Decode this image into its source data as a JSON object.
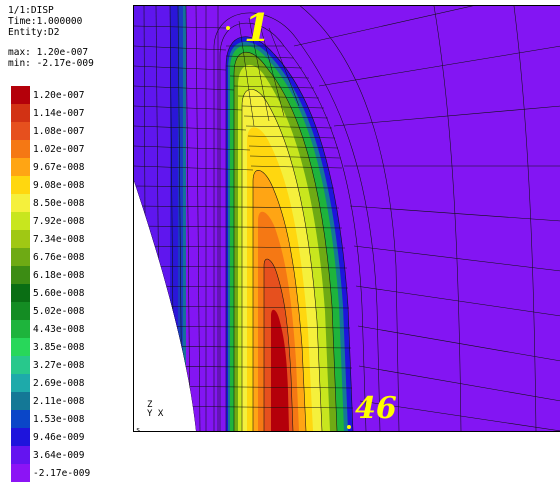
{
  "header": {
    "line1": "1/1:DISP",
    "line2": "Time:1.000000",
    "line3": "Entity:D2",
    "max_label": "max: 1.20e-007",
    "min_label": "min: -2.17e-009"
  },
  "legend": [
    {
      "label": "1.20e-007",
      "color": "#b4000a"
    },
    {
      "label": "1.14e-007",
      "color": "#d23214"
    },
    {
      "label": "1.08e-007",
      "color": "#e6501e"
    },
    {
      "label": "1.02e-007",
      "color": "#f57814"
    },
    {
      "label": "9.67e-008",
      "color": "#ffa514"
    },
    {
      "label": "9.08e-008",
      "color": "#ffd70f"
    },
    {
      "label": "8.50e-008",
      "color": "#f5f03c"
    },
    {
      "label": "7.92e-008",
      "color": "#c8e61e"
    },
    {
      "label": "7.34e-008",
      "color": "#a0c814"
    },
    {
      "label": "6.76e-008",
      "color": "#6eaa14"
    },
    {
      "label": "6.18e-008",
      "color": "#3c8c14"
    },
    {
      "label": "5.60e-008",
      "color": "#0a6e14"
    },
    {
      "label": "5.02e-008",
      "color": "#148c23"
    },
    {
      "label": "4.43e-008",
      "color": "#1eb43c"
    },
    {
      "label": "3.85e-008",
      "color": "#28d75a"
    },
    {
      "label": "3.27e-008",
      "color": "#28c88c"
    },
    {
      "label": "2.69e-008",
      "color": "#1eaaaa"
    },
    {
      "label": "2.11e-008",
      "color": "#147896"
    },
    {
      "label": "1.53e-008",
      "color": "#0a46c8"
    },
    {
      "label": "9.46e-009",
      "color": "#1e14dc"
    },
    {
      "label": "3.64e-009",
      "color": "#6414f0"
    },
    {
      "label": "-2.17e-009",
      "color": "#8c14f5"
    }
  ],
  "plot": {
    "node_top_label": "1",
    "node_bottom_label": "46",
    "axis_z": "Z",
    "axis_yx": "Y X",
    "corner_label": "s",
    "colors": {
      "background": "#7d1af0",
      "mesh": "#111111"
    }
  }
}
